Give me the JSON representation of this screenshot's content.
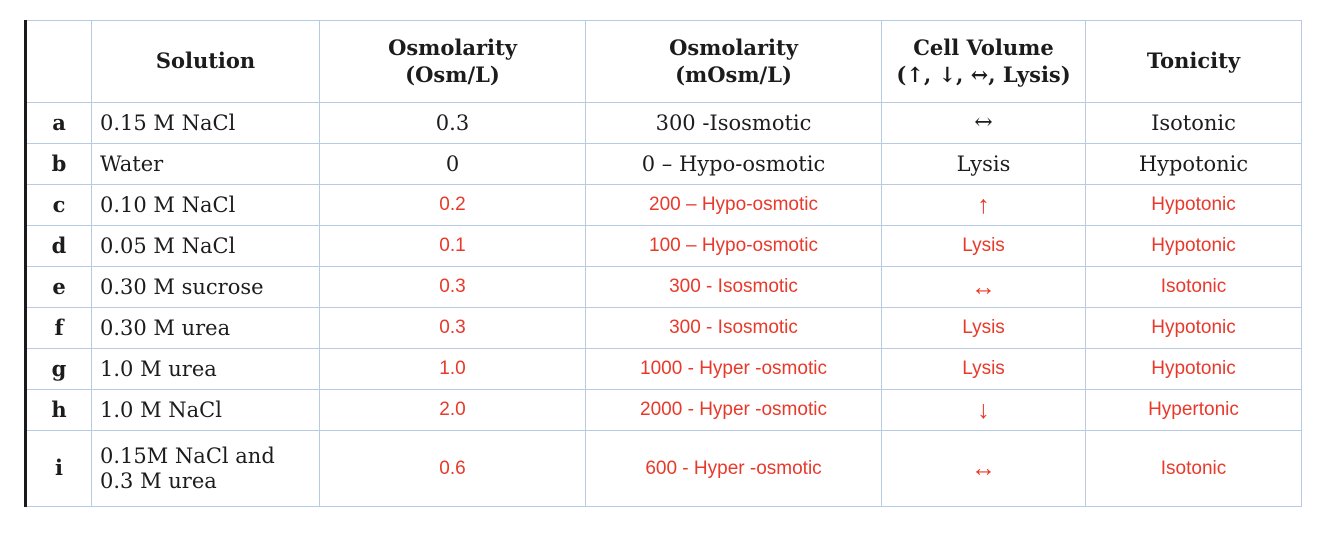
{
  "colors": {
    "answer_red": "#e8392b",
    "grid_blue": "#b8cbe4",
    "text_black": "#1c1c1c"
  },
  "table": {
    "columns": [
      {
        "key": "label",
        "label": ""
      },
      {
        "key": "solution",
        "label": "Solution"
      },
      {
        "key": "osm",
        "label": "Osmolarity\n(Osm/L)"
      },
      {
        "key": "mosm",
        "label": "Osmolarity\n(mOsm/L)"
      },
      {
        "key": "cell_volume",
        "label": "Cell Volume\n(↑, ↓, ↔,  Lysis)"
      },
      {
        "key": "tonicity",
        "label": "Tonicity"
      }
    ],
    "rows": [
      {
        "label": "a",
        "solution": "0.15 M NaCl",
        "osm": "0.3",
        "mosm": "300 -Isosmotic",
        "cell_volume": "↔",
        "tonicity": "Isotonic",
        "answer_color": "black"
      },
      {
        "label": "b",
        "solution": "Water",
        "osm": "0",
        "mosm": "0 – Hypo-osmotic",
        "cell_volume": "Lysis",
        "tonicity": "Hypotonic",
        "answer_color": "black"
      },
      {
        "label": "c",
        "solution": "0.10 M NaCl",
        "osm": "0.2",
        "mosm": "200 – Hypo-osmotic",
        "cell_volume": "↑",
        "tonicity": "Hypotonic",
        "answer_color": "red"
      },
      {
        "label": "d",
        "solution": "0.05 M NaCl",
        "osm": "0.1",
        "mosm": "100 – Hypo-osmotic",
        "cell_volume": "Lysis",
        "tonicity": "Hypotonic",
        "answer_color": "red"
      },
      {
        "label": "e",
        "solution": "0.30 M sucrose",
        "osm": "0.3",
        "mosm": "300 -  Isosmotic",
        "cell_volume": "↔",
        "tonicity": "Isotonic",
        "answer_color": "red"
      },
      {
        "label": "f",
        "solution": "0.30 M urea",
        "osm": "0.3",
        "mosm": "300 -  Isosmotic",
        "cell_volume": "Lysis",
        "tonicity": "Hypotonic",
        "answer_color": "red"
      },
      {
        "label": "g",
        "solution": "1.0 M urea",
        "osm": "1.0",
        "mosm": "1000 -  Hyper -osmotic",
        "cell_volume": "Lysis",
        "tonicity": "Hypotonic",
        "answer_color": "red"
      },
      {
        "label": "h",
        "solution": "1.0 M NaCl",
        "osm": "2.0",
        "mosm": "2000 -  Hyper -osmotic",
        "cell_volume": "↓",
        "tonicity": "Hypertonic",
        "answer_color": "red"
      },
      {
        "label": "i",
        "solution": "0.15M NaCl and\n0.3 M urea",
        "osm": "0.6",
        "mosm": "600 -  Hyper -osmotic",
        "cell_volume": "↔",
        "tonicity": "Isotonic",
        "answer_color": "red"
      }
    ]
  }
}
